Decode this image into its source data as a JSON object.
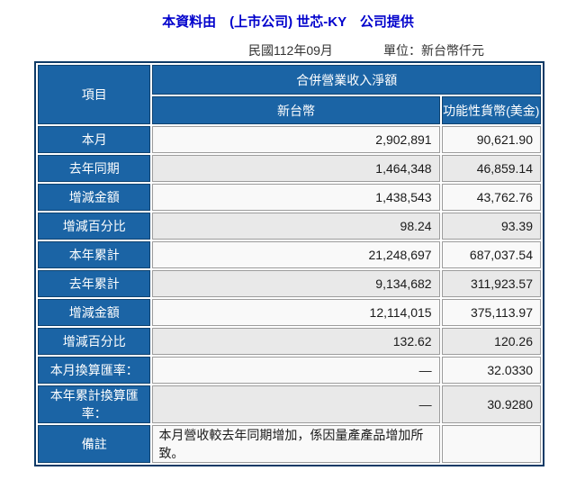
{
  "header": {
    "source_line": "本資料由　(上市公司) 世芯-KY　公司提供",
    "period": "民國112年09月",
    "unit": "單位：新台幣仟元"
  },
  "table": {
    "col_item": "項目",
    "col_group": "合併營業收入淨額",
    "col_ntd": "新台幣",
    "col_usd": "功能性貨幣(美金)",
    "rows": [
      {
        "label": "本月",
        "ntd": "2,902,891",
        "usd": "90,621.90"
      },
      {
        "label": "去年同期",
        "ntd": "1,464,348",
        "usd": "46,859.14"
      },
      {
        "label": "增減金額",
        "ntd": "1,438,543",
        "usd": "43,762.76"
      },
      {
        "label": "增減百分比",
        "ntd": "98.24",
        "usd": "93.39"
      },
      {
        "label": "本年累計",
        "ntd": "21,248,697",
        "usd": "687,037.54"
      },
      {
        "label": "去年累計",
        "ntd": "9,134,682",
        "usd": "311,923.57"
      },
      {
        "label": "增減金額",
        "ntd": "12,114,015",
        "usd": "375,113.97"
      },
      {
        "label": "增減百分比",
        "ntd": "132.62",
        "usd": "120.26"
      },
      {
        "label": "本月換算匯率：",
        "ntd": "—",
        "usd": "32.0330"
      },
      {
        "label": "本年累計換算匯率：",
        "ntd": "—",
        "usd": "30.9280"
      }
    ],
    "remark_label": "備註",
    "remark_text": "本月營收較去年同期增加，係因量產產品增加所致。"
  },
  "colors": {
    "header_blue": "#1b64a5",
    "border_navy": "#0e3a66",
    "title_blue": "#0000cc",
    "row_light": "#f9f9f9",
    "row_gray": "#e9e9e9"
  }
}
